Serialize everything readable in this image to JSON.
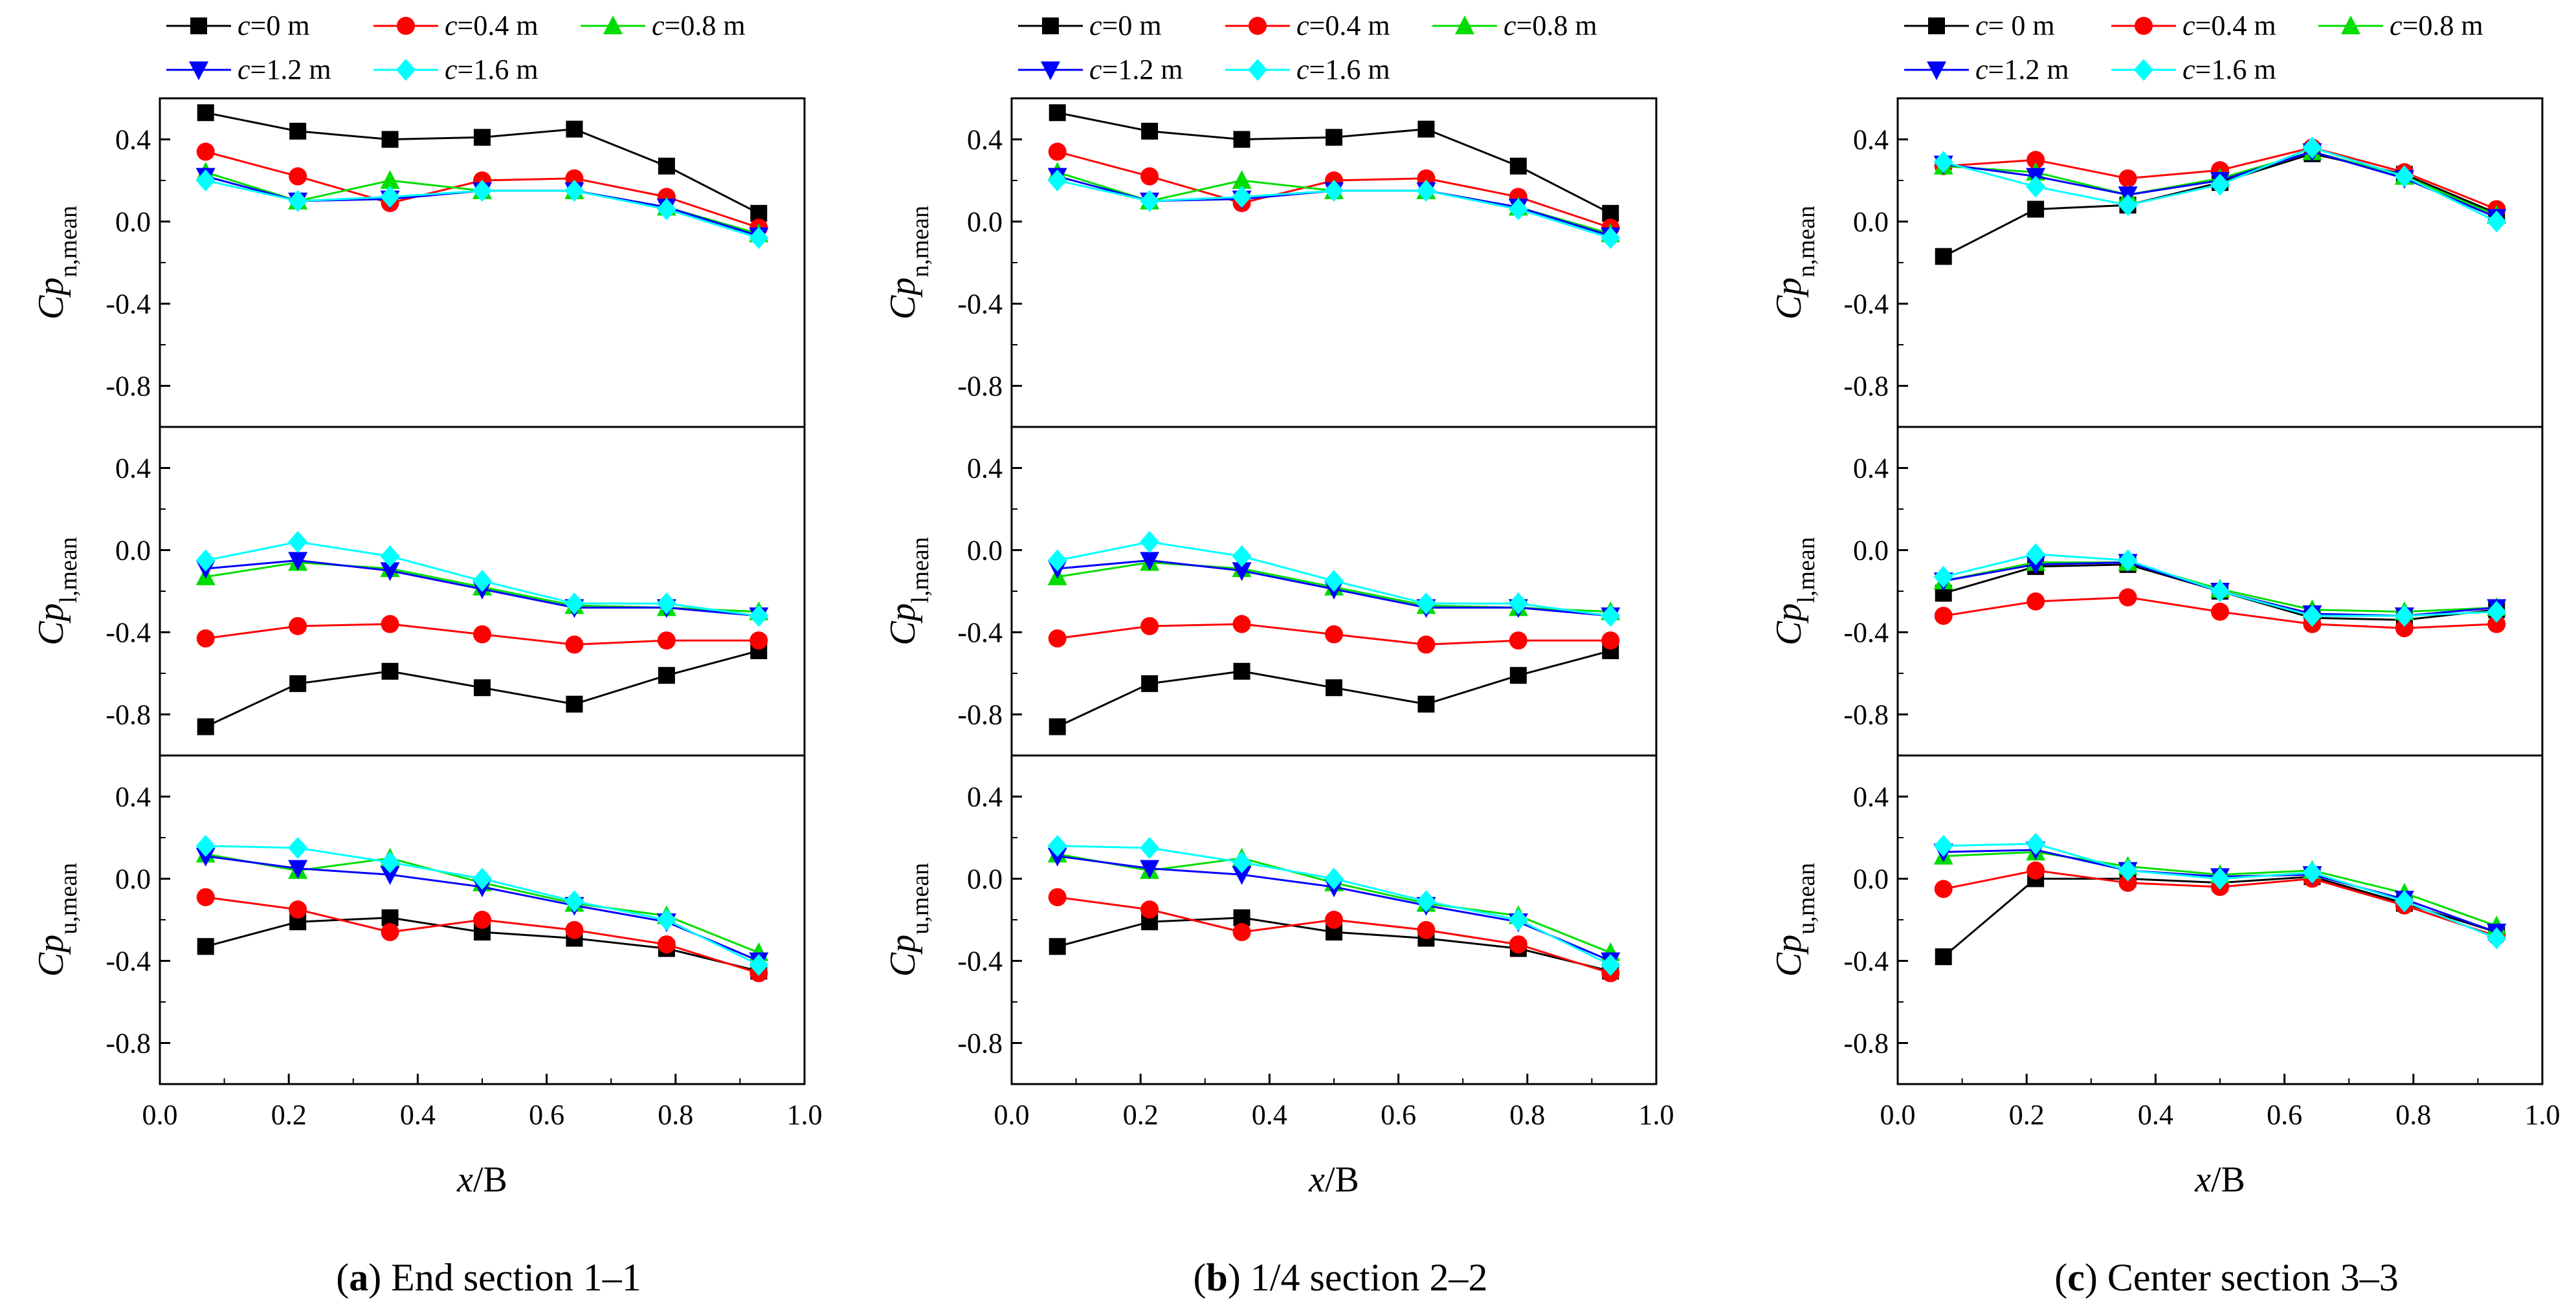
{
  "figure": {
    "captions": [
      {
        "letter": "a",
        "text": "End section 1–1"
      },
      {
        "letter": "b",
        "text": "1/4 section 2–2"
      },
      {
        "letter": "c",
        "text": "Center section 3–3"
      }
    ],
    "xlabel_var": "x",
    "xlabel_rest": "/B",
    "ylabels": [
      {
        "main": "Cp",
        "sub_var": "n",
        "sub_rest": ",mean"
      },
      {
        "main": "Cp",
        "sub_var": "l",
        "sub_rest": ",mean"
      },
      {
        "main": "Cp",
        "sub_var": "u",
        "sub_rest": ",mean"
      }
    ],
    "legend": [
      {
        "var": "c",
        "rest": "=0  m"
      },
      {
        "var": "c",
        "rest": "=0.4 m"
      },
      {
        "var": "c",
        "rest": "=0.8 m"
      },
      {
        "var": "c",
        "rest": "=1.2 m"
      },
      {
        "var": "c",
        "rest": "=1.6 m"
      }
    ],
    "legend_c": [
      {
        "var": "c",
        "rest": "= 0  m"
      },
      {
        "var": "c",
        "rest": "=0.4 m"
      },
      {
        "var": "c",
        "rest": "=0.8 m"
      },
      {
        "var": "c",
        "rest": "=1.2 m"
      },
      {
        "var": "c",
        "rest": "=1.6 m"
      }
    ],
    "series_style": [
      {
        "color": "#000000",
        "marker": "square"
      },
      {
        "color": "#ff0000",
        "marker": "circle"
      },
      {
        "color": "#00dd00",
        "marker": "triangle-up"
      },
      {
        "color": "#0000ff",
        "marker": "triangle-down"
      },
      {
        "color": "#00ffff",
        "marker": "diamond"
      }
    ],
    "xticks": [
      "0.0",
      "0.2",
      "0.4",
      "0.6",
      "0.8",
      "1.0"
    ],
    "yticks": [
      "0.4",
      "0.0",
      "-0.4",
      "-0.8"
    ]
  },
  "chart_data": [
    {
      "type": "line",
      "title": "End section 1–1",
      "xlabel": "x/B",
      "xlim": [
        0,
        1
      ],
      "x": [
        0.071,
        0.214,
        0.357,
        0.5,
        0.643,
        0.786,
        0.929
      ],
      "panels": [
        {
          "ylabel": "Cp_n,mean",
          "ylim": [
            -1.0,
            0.6
          ],
          "series": [
            {
              "name": "c=0  m",
              "values": [
                0.53,
                0.44,
                0.4,
                0.41,
                0.45,
                0.27,
                0.04
              ]
            },
            {
              "name": "c=0.4 m",
              "values": [
                0.34,
                0.22,
                0.09,
                0.2,
                0.21,
                0.12,
                -0.03
              ]
            },
            {
              "name": "c=0.8 m",
              "values": [
                0.24,
                0.1,
                0.2,
                0.15,
                0.15,
                0.07,
                -0.06
              ]
            },
            {
              "name": "c=1.2 m",
              "values": [
                0.22,
                0.1,
                0.11,
                0.15,
                0.15,
                0.07,
                -0.07
              ]
            },
            {
              "name": "c=1.6 m",
              "values": [
                0.2,
                0.1,
                0.12,
                0.15,
                0.15,
                0.06,
                -0.08
              ]
            }
          ]
        },
        {
          "ylabel": "Cp_l,mean",
          "ylim": [
            -1.0,
            0.6
          ],
          "series": [
            {
              "name": "c=0  m",
              "values": [
                -0.86,
                -0.65,
                -0.59,
                -0.67,
                -0.75,
                -0.61,
                -0.49
              ]
            },
            {
              "name": "c=0.4 m",
              "values": [
                -0.43,
                -0.37,
                -0.36,
                -0.41,
                -0.46,
                -0.44,
                -0.44
              ]
            },
            {
              "name": "c=0.8 m",
              "values": [
                -0.13,
                -0.06,
                -0.09,
                -0.18,
                -0.27,
                -0.28,
                -0.3
              ]
            },
            {
              "name": "c=1.2 m",
              "values": [
                -0.09,
                -0.05,
                -0.1,
                -0.19,
                -0.28,
                -0.28,
                -0.32
              ]
            },
            {
              "name": "c=1.6 m",
              "values": [
                -0.05,
                0.04,
                -0.03,
                -0.15,
                -0.26,
                -0.26,
                -0.32
              ]
            }
          ]
        },
        {
          "ylabel": "Cp_u,mean",
          "ylim": [
            -1.0,
            0.6
          ],
          "series": [
            {
              "name": "c=0  m",
              "values": [
                -0.33,
                -0.21,
                -0.19,
                -0.26,
                -0.29,
                -0.34,
                -0.45
              ]
            },
            {
              "name": "c=0.4 m",
              "values": [
                -0.09,
                -0.15,
                -0.26,
                -0.2,
                -0.25,
                -0.32,
                -0.46
              ]
            },
            {
              "name": "c=0.8 m",
              "values": [
                0.12,
                0.04,
                0.1,
                -0.02,
                -0.12,
                -0.18,
                -0.36
              ]
            },
            {
              "name": "c=1.2 m",
              "values": [
                0.11,
                0.05,
                0.02,
                -0.04,
                -0.13,
                -0.21,
                -0.4
              ]
            },
            {
              "name": "c=1.6 m",
              "values": [
                0.16,
                0.15,
                0.08,
                0.0,
                -0.11,
                -0.2,
                -0.42
              ]
            }
          ]
        }
      ]
    },
    {
      "type": "line",
      "title": "1/4 section 2–2",
      "xlabel": "x/B",
      "xlim": [
        0,
        1
      ],
      "x": [
        0.071,
        0.214,
        0.357,
        0.5,
        0.643,
        0.786,
        0.929
      ],
      "panels": [
        {
          "ylabel": "Cp_n,mean",
          "ylim": [
            -1.0,
            0.6
          ],
          "series": [
            {
              "name": "c=0  m",
              "values": [
                0.53,
                0.44,
                0.4,
                0.41,
                0.45,
                0.27,
                0.04
              ]
            },
            {
              "name": "c=0.4 m",
              "values": [
                0.34,
                0.22,
                0.09,
                0.2,
                0.21,
                0.12,
                -0.03
              ]
            },
            {
              "name": "c=0.8 m",
              "values": [
                0.24,
                0.1,
                0.2,
                0.15,
                0.15,
                0.07,
                -0.06
              ]
            },
            {
              "name": "c=1.2 m",
              "values": [
                0.22,
                0.1,
                0.11,
                0.15,
                0.15,
                0.07,
                -0.07
              ]
            },
            {
              "name": "c=1.6 m",
              "values": [
                0.2,
                0.1,
                0.12,
                0.15,
                0.15,
                0.06,
                -0.08
              ]
            }
          ]
        },
        {
          "ylabel": "Cp_l,mean",
          "ylim": [
            -1.0,
            0.6
          ],
          "series": [
            {
              "name": "c=0  m",
              "values": [
                -0.86,
                -0.65,
                -0.59,
                -0.67,
                -0.75,
                -0.61,
                -0.49
              ]
            },
            {
              "name": "c=0.4 m",
              "values": [
                -0.43,
                -0.37,
                -0.36,
                -0.41,
                -0.46,
                -0.44,
                -0.44
              ]
            },
            {
              "name": "c=0.8 m",
              "values": [
                -0.13,
                -0.06,
                -0.09,
                -0.18,
                -0.27,
                -0.28,
                -0.3
              ]
            },
            {
              "name": "c=1.2 m",
              "values": [
                -0.09,
                -0.05,
                -0.1,
                -0.19,
                -0.28,
                -0.28,
                -0.32
              ]
            },
            {
              "name": "c=1.6 m",
              "values": [
                -0.05,
                0.04,
                -0.03,
                -0.15,
                -0.26,
                -0.26,
                -0.32
              ]
            }
          ]
        },
        {
          "ylabel": "Cp_u,mean",
          "ylim": [
            -1.0,
            0.6
          ],
          "series": [
            {
              "name": "c=0  m",
              "values": [
                -0.33,
                -0.21,
                -0.19,
                -0.26,
                -0.29,
                -0.34,
                -0.45
              ]
            },
            {
              "name": "c=0.4 m",
              "values": [
                -0.09,
                -0.15,
                -0.26,
                -0.2,
                -0.25,
                -0.32,
                -0.46
              ]
            },
            {
              "name": "c=0.8 m",
              "values": [
                0.12,
                0.04,
                0.1,
                -0.02,
                -0.12,
                -0.18,
                -0.36
              ]
            },
            {
              "name": "c=1.2 m",
              "values": [
                0.11,
                0.05,
                0.02,
                -0.04,
                -0.13,
                -0.21,
                -0.4
              ]
            },
            {
              "name": "c=1.6 m",
              "values": [
                0.16,
                0.15,
                0.08,
                0.0,
                -0.11,
                -0.2,
                -0.42
              ]
            }
          ]
        }
      ]
    },
    {
      "type": "line",
      "title": "Center section 3–3",
      "xlabel": "x/B",
      "xlim": [
        0,
        1
      ],
      "x": [
        0.071,
        0.214,
        0.357,
        0.5,
        0.643,
        0.786,
        0.929
      ],
      "panels": [
        {
          "ylabel": "Cp_n,mean",
          "ylim": [
            -1.0,
            0.6
          ],
          "series": [
            {
              "name": "c= 0  m",
              "values": [
                -0.17,
                0.06,
                0.08,
                0.19,
                0.33,
                0.23,
                0.04
              ]
            },
            {
              "name": "c=0.4 m",
              "values": [
                0.27,
                0.3,
                0.21,
                0.25,
                0.36,
                0.24,
                0.06
              ]
            },
            {
              "name": "c=0.8 m",
              "values": [
                0.27,
                0.24,
                0.13,
                0.21,
                0.34,
                0.22,
                0.03
              ]
            },
            {
              "name": "c=1.2 m",
              "values": [
                0.28,
                0.22,
                0.13,
                0.2,
                0.34,
                0.21,
                0.02
              ]
            },
            {
              "name": "c=1.6 m",
              "values": [
                0.29,
                0.17,
                0.08,
                0.18,
                0.36,
                0.22,
                0.0
              ]
            }
          ]
        },
        {
          "ylabel": "Cp_l,mean",
          "ylim": [
            -1.0,
            0.6
          ],
          "series": [
            {
              "name": "c= 0  m",
              "values": [
                -0.21,
                -0.08,
                -0.07,
                -0.2,
                -0.33,
                -0.34,
                -0.29
              ]
            },
            {
              "name": "c=0.4 m",
              "values": [
                -0.32,
                -0.25,
                -0.23,
                -0.3,
                -0.36,
                -0.38,
                -0.36
              ]
            },
            {
              "name": "c=0.8 m",
              "values": [
                -0.15,
                -0.06,
                -0.06,
                -0.19,
                -0.29,
                -0.3,
                -0.28
              ]
            },
            {
              "name": "c=1.2 m",
              "values": [
                -0.15,
                -0.07,
                -0.06,
                -0.2,
                -0.31,
                -0.32,
                -0.28
              ]
            },
            {
              "name": "c=1.6 m",
              "values": [
                -0.13,
                -0.02,
                -0.05,
                -0.2,
                -0.32,
                -0.32,
                -0.3
              ]
            }
          ]
        },
        {
          "ylabel": "Cp_u,mean",
          "ylim": [
            -1.0,
            0.6
          ],
          "series": [
            {
              "name": "c= 0  m",
              "values": [
                -0.38,
                0.0,
                0.0,
                -0.02,
                0.01,
                -0.12,
                -0.26
              ]
            },
            {
              "name": "c=0.4 m",
              "values": [
                -0.05,
                0.04,
                -0.02,
                -0.04,
                0.0,
                -0.13,
                -0.28
              ]
            },
            {
              "name": "c=0.8 m",
              "values": [
                0.11,
                0.13,
                0.06,
                0.02,
                0.04,
                -0.07,
                -0.23
              ]
            },
            {
              "name": "c=1.2 m",
              "values": [
                0.13,
                0.14,
                0.04,
                0.01,
                0.02,
                -0.1,
                -0.26
              ]
            },
            {
              "name": "c=1.6 m",
              "values": [
                0.16,
                0.17,
                0.04,
                0.0,
                0.03,
                -0.11,
                -0.29
              ]
            }
          ]
        }
      ]
    }
  ]
}
